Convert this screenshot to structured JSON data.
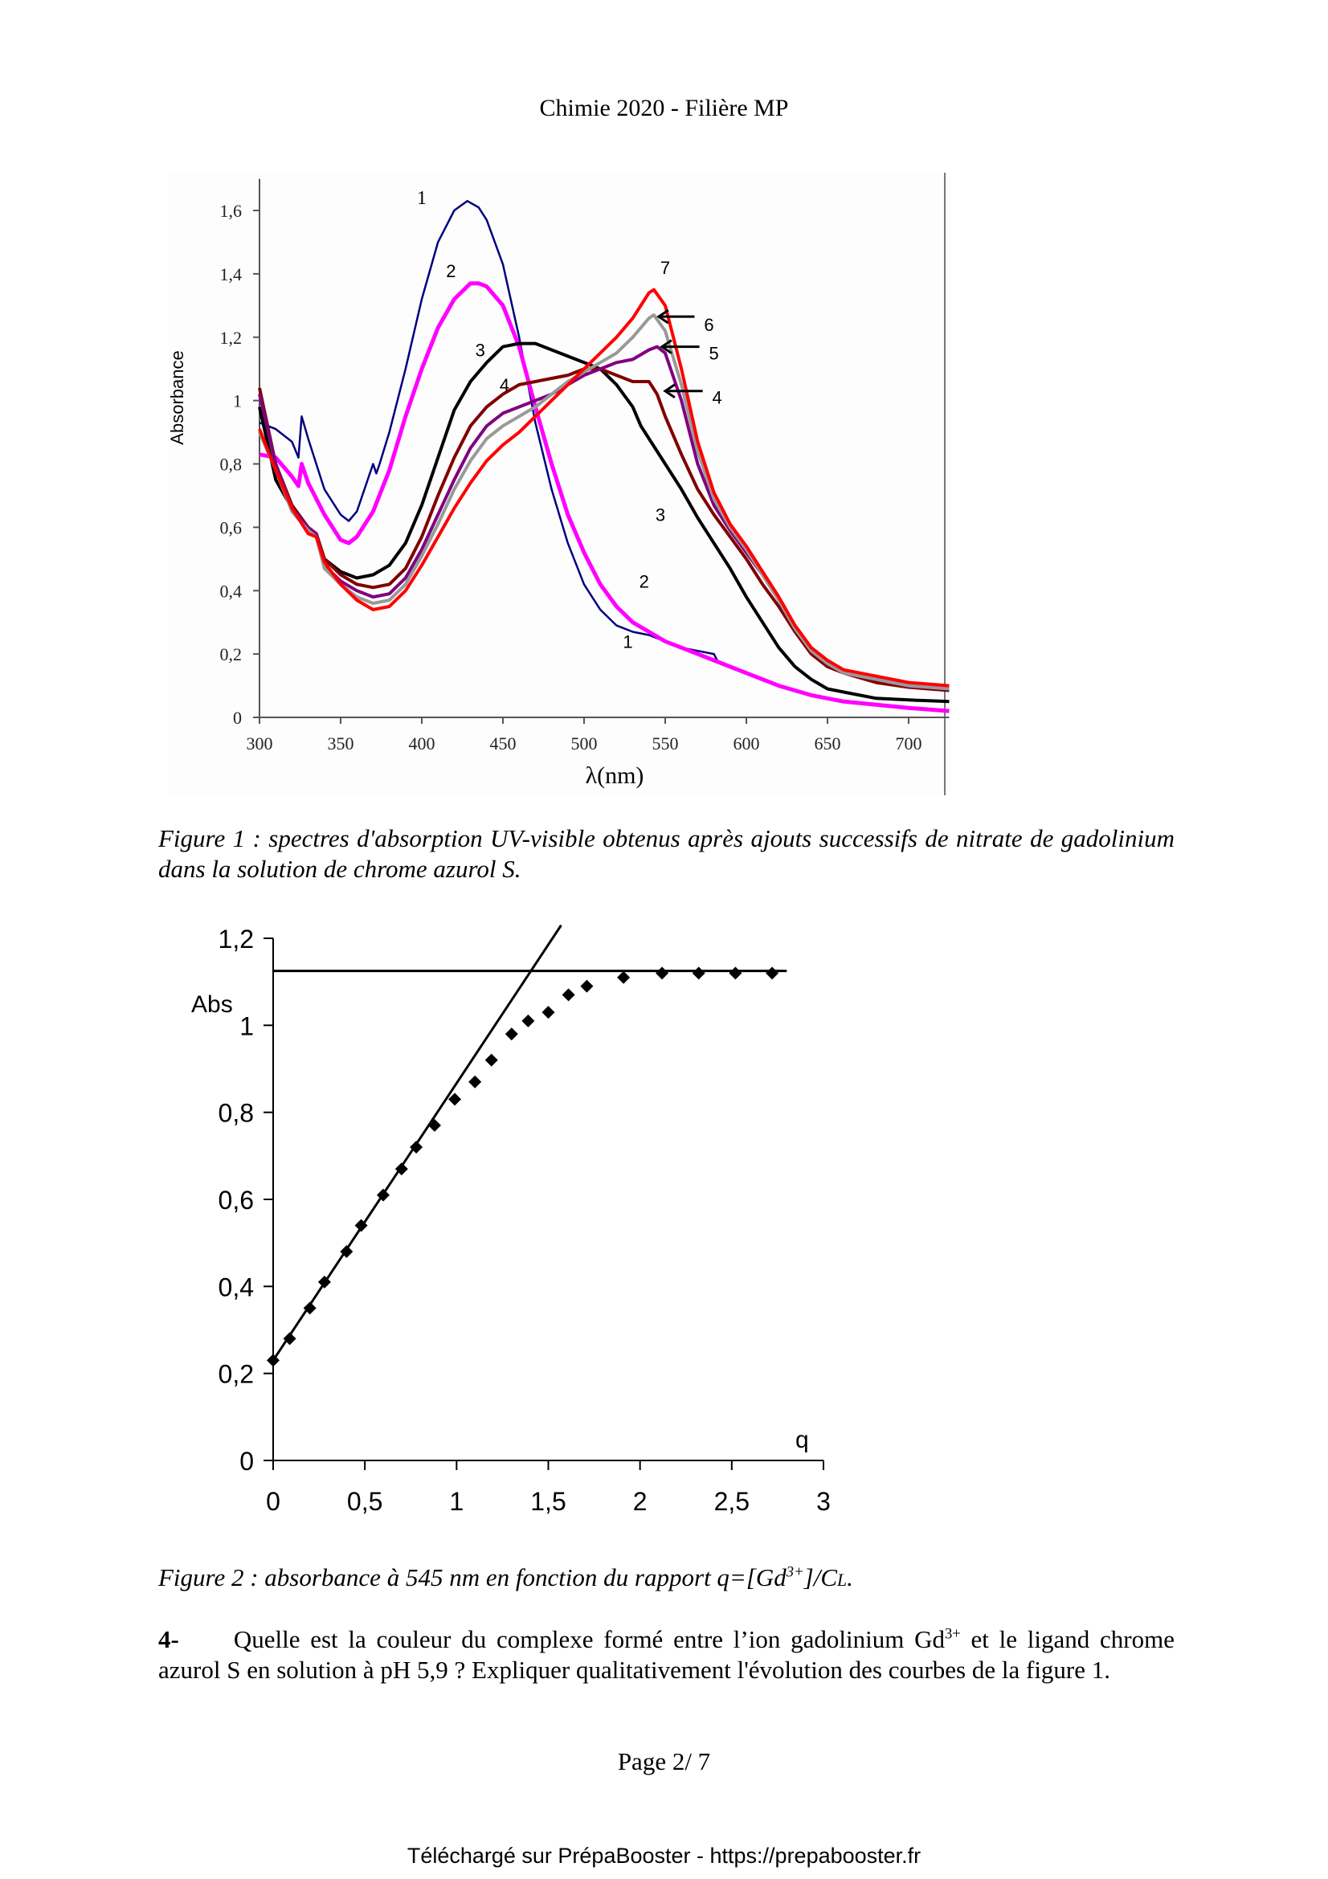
{
  "header": {
    "title": "Chimie 2020 - Filière MP"
  },
  "figure1": {
    "caption": "Figure 1 : spectres d'absorption UV-visible obtenus après ajouts successifs de nitrate de gadolinium dans la solution de chrome azurol S."
  },
  "figure2": {
    "caption_prefix": "Figure 2 : absorbance à 545 nm en fonction du rapport q=[Gd",
    "caption_sup": "3+",
    "caption_mid": "]/C",
    "caption_sub": "L",
    "caption_suffix": "."
  },
  "question": {
    "number": "4-",
    "text_part1": "Quelle est la couleur du complexe formé entre l’ion gadolinium Gd",
    "sup": "3+",
    "text_part2": " et le ligand chrome azurol S en solution à pH 5,9  ? Expliquer qualitativement l'évolution des courbes de la figure 1."
  },
  "page_number": "Page 2/ 7",
  "footer": "Téléchargé sur PrépaBooster - https://prepabooster.fr",
  "chart_data": [
    {
      "type": "line",
      "title": "",
      "xlabel": "λ(nm)",
      "ylabel": "Absorbance",
      "xlim": [
        300,
        725
      ],
      "ylim": [
        0,
        1.7
      ],
      "xticks": [
        300,
        350,
        400,
        450,
        500,
        550,
        600,
        650,
        700
      ],
      "xtick_labels": [
        "300",
        "350",
        "400",
        "450",
        "500",
        "550",
        "600",
        "650",
        "700"
      ],
      "yticks": [
        0,
        0.2,
        0.4,
        0.6,
        0.8,
        1.0,
        1.2,
        1.4,
        1.6
      ],
      "ytick_labels": [
        "0",
        "0,2",
        "0,4",
        "0,6",
        "0,8",
        "1",
        "1,2",
        "1,4",
        "1,6"
      ],
      "grid": false,
      "legend": "none",
      "series": [
        {
          "name": "1",
          "color": "#000080",
          "x": [
            300,
            310,
            320,
            324,
            326,
            330,
            340,
            350,
            355,
            360,
            370,
            372,
            374,
            380,
            390,
            400,
            410,
            420,
            428,
            435,
            440,
            450,
            460,
            470,
            480,
            490,
            500,
            510,
            520,
            530,
            540,
            550,
            560,
            570,
            580,
            582,
            590,
            600,
            620,
            640,
            660,
            680,
            700,
            725
          ],
          "y": [
            0.93,
            0.91,
            0.87,
            0.82,
            0.95,
            0.88,
            0.72,
            0.64,
            0.62,
            0.65,
            0.8,
            0.77,
            0.8,
            0.9,
            1.1,
            1.32,
            1.5,
            1.6,
            1.63,
            1.61,
            1.57,
            1.43,
            1.2,
            0.93,
            0.72,
            0.55,
            0.42,
            0.34,
            0.29,
            0.27,
            0.26,
            0.24,
            0.22,
            0.21,
            0.2,
            0.18,
            0.16,
            0.14,
            0.1,
            0.07,
            0.05,
            0.04,
            0.03,
            0.02
          ]
        },
        {
          "name": "2",
          "color": "#ff00ff",
          "x": [
            300,
            310,
            320,
            324,
            326,
            330,
            340,
            350,
            355,
            360,
            370,
            380,
            390,
            400,
            410,
            420,
            430,
            435,
            440,
            450,
            460,
            470,
            480,
            490,
            500,
            510,
            520,
            530,
            540,
            550,
            560,
            570,
            580,
            600,
            620,
            640,
            660,
            680,
            700,
            725
          ],
          "y": [
            0.83,
            0.82,
            0.76,
            0.73,
            0.8,
            0.74,
            0.64,
            0.56,
            0.55,
            0.57,
            0.65,
            0.78,
            0.95,
            1.1,
            1.23,
            1.32,
            1.37,
            1.37,
            1.36,
            1.3,
            1.17,
            0.98,
            0.8,
            0.64,
            0.52,
            0.42,
            0.35,
            0.3,
            0.27,
            0.24,
            0.22,
            0.2,
            0.18,
            0.14,
            0.1,
            0.07,
            0.05,
            0.04,
            0.03,
            0.02
          ]
        },
        {
          "name": "3",
          "color": "#000000",
          "x": [
            300,
            310,
            320,
            330,
            335,
            340,
            350,
            360,
            370,
            380,
            390,
            400,
            410,
            420,
            430,
            440,
            450,
            460,
            470,
            480,
            490,
            500,
            510,
            520,
            530,
            535,
            540,
            550,
            560,
            570,
            580,
            590,
            600,
            610,
            620,
            630,
            640,
            650,
            660,
            680,
            700,
            725
          ],
          "y": [
            0.98,
            0.75,
            0.66,
            0.59,
            0.58,
            0.5,
            0.46,
            0.44,
            0.45,
            0.48,
            0.55,
            0.67,
            0.82,
            0.97,
            1.06,
            1.12,
            1.17,
            1.18,
            1.18,
            1.16,
            1.14,
            1.12,
            1.1,
            1.05,
            0.98,
            0.92,
            0.88,
            0.8,
            0.72,
            0.63,
            0.55,
            0.47,
            0.38,
            0.3,
            0.22,
            0.16,
            0.12,
            0.09,
            0.08,
            0.06,
            0.055,
            0.05
          ]
        },
        {
          "name": "4",
          "color": "#800000",
          "x": [
            300,
            310,
            320,
            330,
            335,
            340,
            350,
            360,
            370,
            380,
            390,
            400,
            410,
            420,
            430,
            440,
            450,
            460,
            470,
            480,
            490,
            500,
            510,
            520,
            530,
            540,
            545,
            550,
            560,
            570,
            580,
            590,
            600,
            610,
            620,
            630,
            640,
            650,
            660,
            680,
            700,
            725
          ],
          "y": [
            1.04,
            0.8,
            0.67,
            0.6,
            0.58,
            0.5,
            0.45,
            0.42,
            0.41,
            0.42,
            0.47,
            0.57,
            0.7,
            0.82,
            0.92,
            0.98,
            1.02,
            1.05,
            1.06,
            1.07,
            1.08,
            1.1,
            1.1,
            1.08,
            1.06,
            1.06,
            1.02,
            0.95,
            0.83,
            0.72,
            0.64,
            0.57,
            0.5,
            0.42,
            0.35,
            0.27,
            0.2,
            0.16,
            0.14,
            0.11,
            0.095,
            0.085
          ]
        },
        {
          "name": "5",
          "color": "#800080",
          "x": [
            300,
            310,
            320,
            330,
            335,
            340,
            350,
            360,
            370,
            380,
            390,
            400,
            410,
            420,
            430,
            440,
            450,
            460,
            470,
            480,
            490,
            500,
            510,
            520,
            530,
            540,
            545,
            550,
            560,
            570,
            580,
            590,
            600,
            610,
            620,
            630,
            640,
            650,
            660,
            680,
            700,
            725
          ],
          "y": [
            1.02,
            0.8,
            0.66,
            0.6,
            0.58,
            0.48,
            0.43,
            0.4,
            0.38,
            0.39,
            0.44,
            0.53,
            0.64,
            0.75,
            0.85,
            0.92,
            0.96,
            0.98,
            1.0,
            1.02,
            1.05,
            1.08,
            1.1,
            1.12,
            1.13,
            1.16,
            1.17,
            1.15,
            1.0,
            0.8,
            0.67,
            0.59,
            0.52,
            0.45,
            0.37,
            0.28,
            0.21,
            0.17,
            0.14,
            0.12,
            0.1,
            0.09
          ]
        },
        {
          "name": "6",
          "color": "#999999",
          "x": [
            300,
            310,
            320,
            330,
            335,
            340,
            350,
            360,
            370,
            380,
            390,
            400,
            410,
            420,
            430,
            440,
            450,
            460,
            470,
            480,
            490,
            500,
            510,
            520,
            530,
            540,
            543,
            550,
            560,
            570,
            580,
            590,
            600,
            610,
            620,
            630,
            640,
            650,
            660,
            680,
            700,
            725
          ],
          "y": [
            0.9,
            0.78,
            0.65,
            0.59,
            0.57,
            0.47,
            0.42,
            0.38,
            0.36,
            0.37,
            0.42,
            0.51,
            0.61,
            0.72,
            0.81,
            0.88,
            0.92,
            0.95,
            0.98,
            1.02,
            1.06,
            1.09,
            1.12,
            1.15,
            1.2,
            1.26,
            1.27,
            1.22,
            1.05,
            0.84,
            0.69,
            0.6,
            0.53,
            0.45,
            0.37,
            0.28,
            0.21,
            0.17,
            0.14,
            0.12,
            0.1,
            0.09
          ]
        },
        {
          "name": "7",
          "color": "#ff0000",
          "x": [
            300,
            310,
            320,
            330,
            335,
            340,
            350,
            360,
            370,
            380,
            390,
            400,
            410,
            420,
            430,
            440,
            450,
            460,
            470,
            480,
            490,
            500,
            510,
            520,
            530,
            540,
            543,
            550,
            560,
            570,
            580,
            590,
            600,
            610,
            620,
            630,
            640,
            650,
            660,
            680,
            700,
            725
          ],
          "y": [
            0.91,
            0.78,
            0.66,
            0.58,
            0.57,
            0.49,
            0.42,
            0.37,
            0.34,
            0.35,
            0.4,
            0.48,
            0.57,
            0.66,
            0.74,
            0.81,
            0.86,
            0.9,
            0.95,
            1.0,
            1.05,
            1.1,
            1.15,
            1.2,
            1.26,
            1.34,
            1.35,
            1.3,
            1.1,
            0.87,
            0.71,
            0.61,
            0.54,
            0.46,
            0.38,
            0.29,
            0.22,
            0.18,
            0.15,
            0.13,
            0.11,
            0.1
          ]
        }
      ],
      "annotations": [
        {
          "text": "1",
          "x": 400,
          "y": 1.64
        },
        {
          "text": "2",
          "x": 418,
          "y": 1.41
        },
        {
          "text": "3",
          "x": 436,
          "y": 1.16
        },
        {
          "text": "4",
          "x": 451,
          "y": 1.05
        },
        {
          "text": "7",
          "x": 550,
          "y": 1.42
        },
        {
          "text": "6",
          "x": 577,
          "y": 1.24,
          "arrow_to": [
            543,
            1.265
          ]
        },
        {
          "text": "5",
          "x": 580,
          "y": 1.15,
          "arrow_to": [
            545,
            1.17
          ]
        },
        {
          "text": "4",
          "x": 582,
          "y": 1.01,
          "arrow_to": [
            547,
            1.03
          ]
        },
        {
          "text": "3",
          "x": 547,
          "y": 0.64
        },
        {
          "text": "2",
          "x": 537,
          "y": 0.43
        },
        {
          "text": "1",
          "x": 527,
          "y": 0.24
        }
      ]
    },
    {
      "type": "scatter",
      "title": "",
      "xlabel": "q",
      "ylabel": "Abs",
      "xlim": [
        0,
        3
      ],
      "ylim": [
        0,
        1.2
      ],
      "xticks": [
        0,
        0.5,
        1,
        1.5,
        2,
        2.5,
        3
      ],
      "xtick_labels": [
        "0",
        "0,5",
        "1",
        "1,5",
        "2",
        "2,5",
        "3"
      ],
      "yticks": [
        0,
        0.2,
        0.4,
        0.6,
        0.8,
        1.0,
        1.2
      ],
      "ytick_labels": [
        "0",
        "0,2",
        "0,4",
        "0,6",
        "0,8",
        "1",
        "1,2"
      ],
      "grid": false,
      "legend": "none",
      "series": [
        {
          "name": "Abs 545 nm",
          "marker": "diamond",
          "color": "#000000",
          "x": [
            0,
            0.09,
            0.2,
            0.28,
            0.4,
            0.48,
            0.6,
            0.7,
            0.78,
            0.88,
            0.99,
            1.1,
            1.19,
            1.3,
            1.39,
            1.5,
            1.61,
            1.71,
            1.91,
            2.12,
            2.32,
            2.52,
            2.72
          ],
          "y": [
            0.23,
            0.28,
            0.35,
            0.41,
            0.48,
            0.54,
            0.61,
            0.67,
            0.72,
            0.77,
            0.83,
            0.87,
            0.92,
            0.98,
            1.01,
            1.03,
            1.07,
            1.09,
            1.11,
            1.12,
            1.12,
            1.12,
            1.12
          ]
        }
      ],
      "lines": [
        {
          "name": "tangent-initial",
          "x": [
            0,
            1.57
          ],
          "y": [
            0.23,
            1.23
          ]
        },
        {
          "name": "plateau",
          "x": [
            0,
            2.8
          ],
          "y": [
            1.125,
            1.125
          ]
        }
      ]
    }
  ]
}
